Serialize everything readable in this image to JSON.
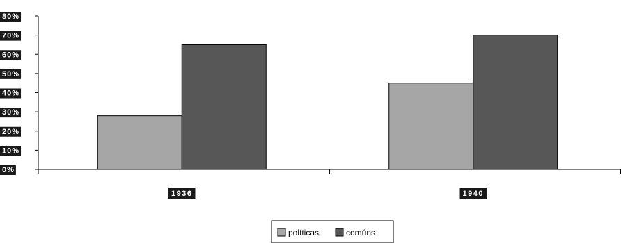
{
  "chart_data": {
    "type": "bar",
    "categories": [
      "1936",
      "1940"
    ],
    "series": [
      {
        "name": "políticas",
        "values": [
          28,
          45
        ],
        "color": "#a6a6a6"
      },
      {
        "name": "comúns",
        "values": [
          65,
          70
        ],
        "color": "#575757"
      }
    ],
    "y_ticks": [
      "0%",
      "10%",
      "20%",
      "30%",
      "40%",
      "50%",
      "60%",
      "70%",
      "80%"
    ],
    "ylim": [
      0,
      80
    ],
    "grid": false,
    "legend": "bottom-center",
    "label_background": "#1a1a1a"
  }
}
